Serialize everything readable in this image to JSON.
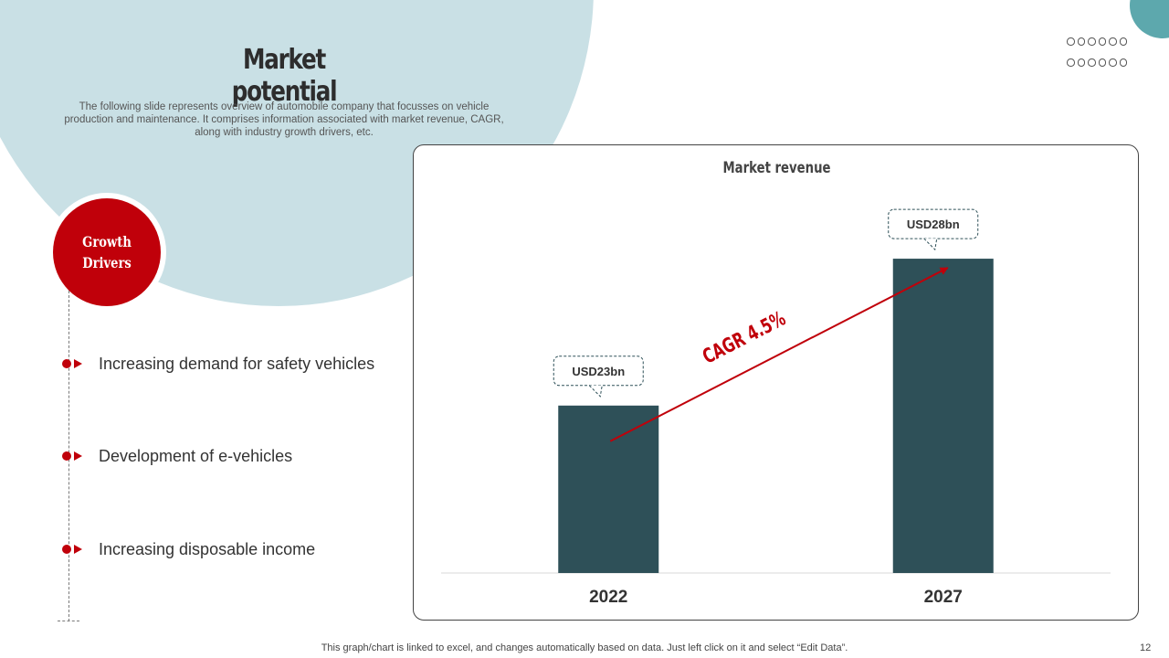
{
  "slide": {
    "title": "Market potential",
    "subtitle": "The following slide represents overview of automobile company that focusses on vehicle production and maintenance. It comprises information associated with market revenue, CAGR, along with industry growth drivers, etc.",
    "drivers_heading": "Growth Drivers",
    "drivers": [
      "Increasing demand for safety vehicles",
      "Development of e-vehicles",
      "Increasing disposable income"
    ],
    "footnote": "This graph/chart is linked to excel,  and changes automatically based on data. Just left click on it and select “Edit Data”.",
    "page_number": "12"
  },
  "colors": {
    "accent_red": "#c0000a",
    "bar": "#2e5058",
    "background_circle": "#c9e0e5",
    "corner_circle": "#5da8ad"
  },
  "chart_data": {
    "type": "bar",
    "title": "Market revenue",
    "categories": [
      "2022",
      "2027"
    ],
    "values": [
      23,
      28
    ],
    "data_labels": [
      "USD23bn",
      "USD28bn"
    ],
    "unit": "USD bn",
    "ylim": [
      17.3,
      28.5
    ],
    "xlabel": "",
    "ylabel": "",
    "grid": false,
    "annotation": "CAGR 4.5%"
  }
}
